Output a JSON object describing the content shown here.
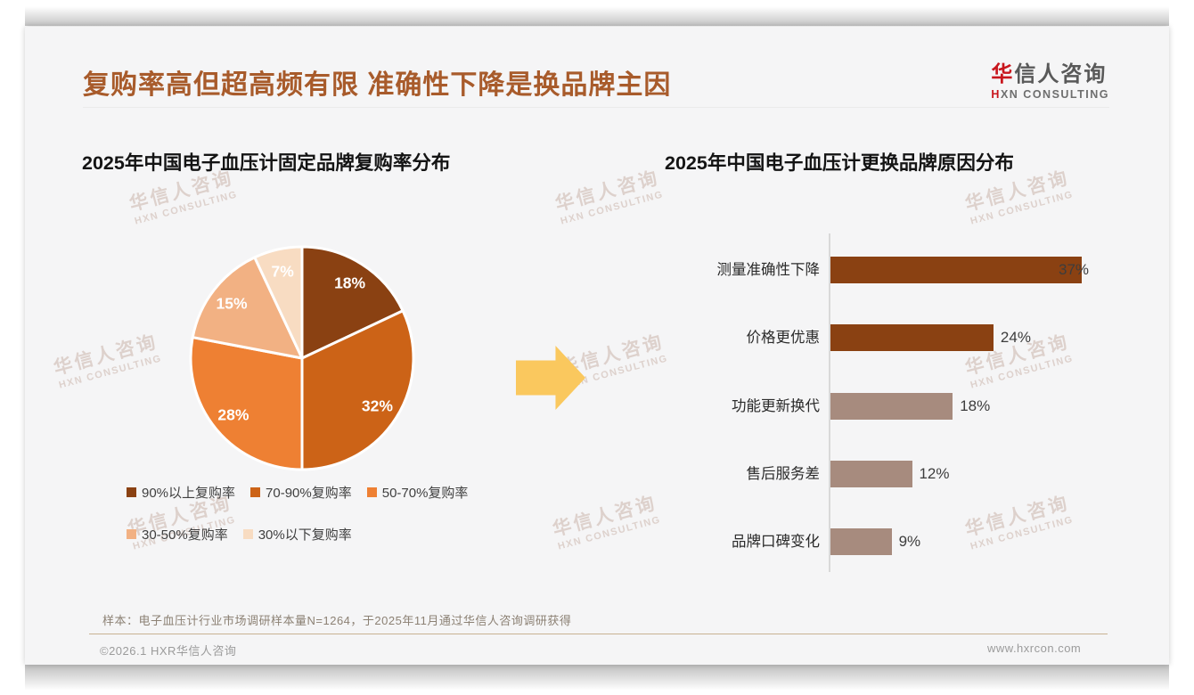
{
  "page": {
    "title": "复购率高但超高频有限 准确性下降是换品牌主因",
    "logo": {
      "brand_first_char": "华",
      "brand_rest": "信人咨询",
      "sub_first_char": "H",
      "sub_rest": "XN CONSULTING"
    },
    "watermark": {
      "line1": "华信人咨询",
      "line2": "HXN CONSULTING"
    },
    "footnote": "样本：电子血压计行业市场调研样本量N=1264，于2025年11月通过华信人咨询调研获得",
    "copyright": "©2026.1 HXR华信人咨询",
    "website": "www.hxrcon.com"
  },
  "colors": {
    "title_accent": "#a85b2b",
    "brand_red": "#c8161d",
    "brand_gray": "#595959",
    "arrow_yellow": "#fac85e",
    "axis_gray": "#d9d9d9",
    "footer_divider_tan": "#c8b292",
    "watermark_pink_gray": "#c7aea4"
  },
  "chart_data": [
    {
      "type": "pie",
      "title": "2025年中国电子血压计固定品牌复购率分布",
      "labels": [
        "90%以上复购率",
        "70-90%复购率",
        "50-70%复购率",
        "30-50%复购率",
        "30%以下复购率"
      ],
      "values": [
        18,
        32,
        28,
        15,
        7
      ],
      "value_labels": [
        "18%",
        "32%",
        "28%",
        "15%",
        "7%"
      ],
      "unit": "%",
      "colors": [
        "#8a4112",
        "#cc6317",
        "#ee8033",
        "#f2b183",
        "#f8dcc2"
      ],
      "start_angle_deg": 0,
      "direction": "clockwise",
      "slice_label_color": "#ffffff",
      "legend_position": "bottom",
      "legend_rows": [
        3,
        2
      ]
    },
    {
      "type": "bar",
      "orientation": "horizontal",
      "title": "2025年中国电子血压计更换品牌原因分布",
      "categories": [
        "测量准确性下降",
        "价格更优惠",
        "功能更新换代",
        "售后服务差",
        "品牌口碑变化"
      ],
      "values": [
        37,
        24,
        18,
        12,
        9
      ],
      "value_labels": [
        "37%",
        "24%",
        "18%",
        "12%",
        "9%"
      ],
      "unit": "%",
      "bar_colors": [
        "#8a4112",
        "#8a4112",
        "#a78b7e",
        "#a78b7e",
        "#a78b7e"
      ],
      "xlim": [
        0,
        40
      ],
      "grid": false,
      "value_label_position": "outside-end"
    }
  ]
}
